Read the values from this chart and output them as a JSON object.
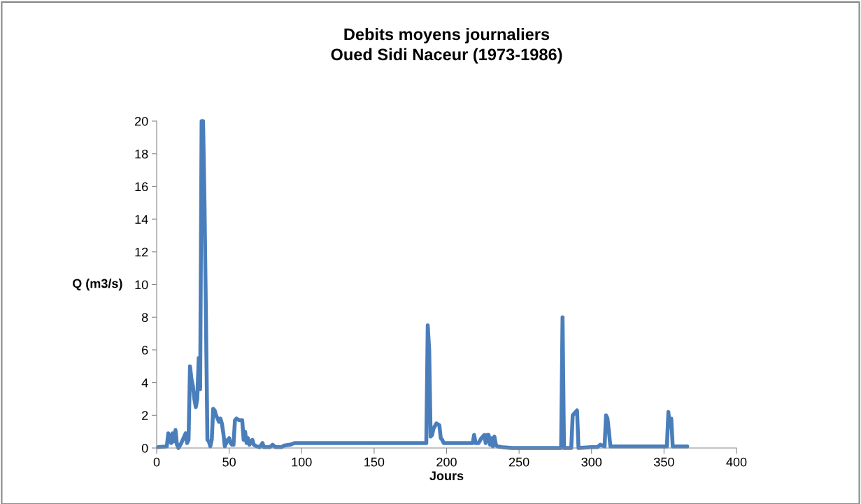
{
  "chart_data": {
    "type": "line",
    "title": "Debits moyens journaliers\nOued Sidi Naceur (1973-1986)",
    "xlabel": "Jours",
    "ylabel": "Q (m3/s)",
    "xlim": [
      0,
      400
    ],
    "xticks": [
      0,
      50,
      100,
      150,
      200,
      250,
      300,
      350,
      400
    ],
    "ylim": [
      0,
      20
    ],
    "yticks": [
      0,
      2,
      4,
      6,
      8,
      10,
      12,
      14,
      16,
      18,
      20
    ],
    "grid": false,
    "legend": false,
    "marker": "none",
    "line_style": "solid",
    "series": [
      {
        "color": "#4a7ebb",
        "x": [
          1,
          7,
          8,
          9,
          10,
          11,
          12,
          13,
          14,
          15,
          17,
          19,
          20,
          21,
          22,
          23,
          24,
          25,
          26,
          27,
          28,
          29,
          30,
          31,
          32,
          33,
          34,
          35,
          36,
          37,
          38,
          39,
          40,
          41,
          42,
          43,
          44,
          45,
          46,
          47,
          48,
          49,
          50,
          51,
          52,
          53,
          54,
          55,
          57,
          59,
          60,
          61,
          62,
          63,
          64,
          66,
          67,
          69,
          71,
          73,
          74,
          78,
          80,
          82,
          86,
          88,
          92,
          95,
          186,
          187,
          188,
          189,
          190,
          191,
          193,
          195,
          196,
          197,
          198,
          218,
          219,
          220,
          222,
          224,
          226,
          227,
          228,
          229,
          230,
          231,
          232,
          233,
          234,
          235,
          238,
          245,
          279,
          280,
          281,
          286,
          287,
          288,
          290,
          291,
          300,
          304,
          306,
          309,
          310,
          311,
          312,
          313,
          352,
          353,
          354,
          355,
          356,
          366
        ],
        "values": [
          0.05,
          0.1,
          0.9,
          0.7,
          0.3,
          0.9,
          0.4,
          1.1,
          0.2,
          0.0,
          0.3,
          0.7,
          0.9,
          0.3,
          0.5,
          5.0,
          4.2,
          3.8,
          3.0,
          2.5,
          3.0,
          5.5,
          3.6,
          20,
          20,
          15,
          8,
          0.5,
          0.4,
          0.1,
          0.5,
          2.4,
          2.3,
          2.0,
          1.8,
          1.6,
          1.8,
          1.5,
          0.9,
          0.1,
          0.3,
          0.5,
          0.6,
          0.3,
          0.2,
          0.2,
          1.7,
          1.8,
          1.7,
          1.7,
          0.5,
          1.0,
          0.3,
          0.6,
          0.2,
          0.5,
          0.2,
          0.1,
          0.05,
          0.3,
          0.05,
          0.05,
          0.2,
          0.05,
          0.05,
          0.15,
          0.2,
          0.3,
          0.3,
          7.5,
          6.0,
          0.7,
          0.8,
          1.2,
          1.5,
          1.4,
          0.6,
          0.5,
          0.3,
          0.3,
          0.8,
          0.3,
          0.3,
          0.6,
          0.8,
          0.3,
          0.8,
          0.8,
          0.2,
          0.6,
          0.1,
          0.7,
          0.2,
          0.1,
          0.05,
          0.0,
          0.0,
          8.0,
          0.0,
          0.0,
          2.0,
          2.1,
          2.3,
          0.0,
          0.05,
          0.05,
          0.2,
          0.1,
          2.0,
          1.8,
          1.0,
          0.1,
          0.1,
          2.2,
          1.3,
          1.8,
          0.1,
          0.1
        ]
      }
    ]
  }
}
